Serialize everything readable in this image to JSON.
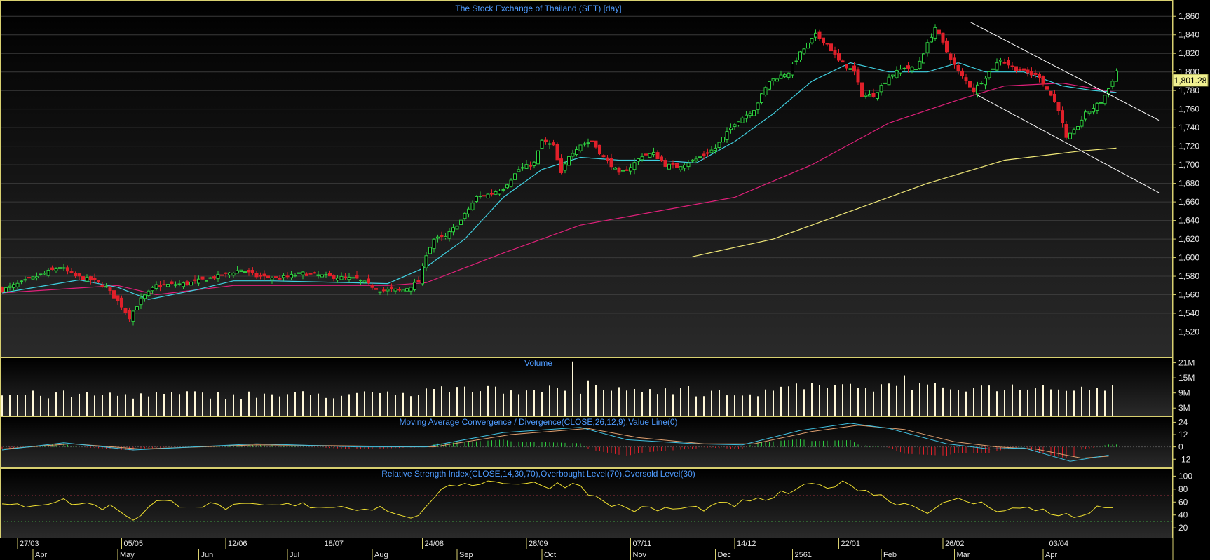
{
  "chart_data": [
    {
      "type": "candlestick",
      "title": "The Stock Exchange of Thailand (SET) [day]",
      "ylim": [
        1500,
        1870
      ],
      "y_ticks": [
        "1,520",
        "1,540",
        "1,560",
        "1,580",
        "1,600",
        "1,620",
        "1,640",
        "1,660",
        "1,680",
        "1,700",
        "1,720",
        "1,740",
        "1,760",
        "1,780",
        "1,800",
        "1,820",
        "1,840",
        "1,860"
      ],
      "last_value": "1,801.28",
      "grid": true,
      "x_tick_labels": [
        "27/03",
        "05/05",
        "12/06",
        "18/07",
        "24/08",
        "28/09",
        "07/11",
        "14/12",
        "22/01",
        "26/02",
        "03/04"
      ],
      "month_labels": [
        "Apr",
        "May",
        "Jun",
        "Jul",
        "Aug",
        "Sep",
        "Oct",
        "Nov",
        "Dec",
        "2561",
        "Feb",
        "Mar",
        "Apr"
      ],
      "colors": {
        "up": "#2ecc40",
        "down": "#e0202a",
        "ma_fast": "#40d0e0",
        "ma_mid": "#e0207a",
        "ma_slow": "#f0e878",
        "trendline": "#ffffff",
        "grid": "#3a3a3a",
        "border": "#d8d070",
        "title": "#4f9cff"
      },
      "close_path": [
        [
          0,
          1565
        ],
        [
          8,
          1578
        ],
        [
          15,
          1590
        ],
        [
          19,
          1580
        ],
        [
          24,
          1575
        ],
        [
          27,
          1568
        ],
        [
          31,
          1548
        ],
        [
          33,
          1536
        ],
        [
          36,
          1555
        ],
        [
          40,
          1570
        ],
        [
          48,
          1572
        ],
        [
          56,
          1580
        ],
        [
          62,
          1587
        ],
        [
          66,
          1580
        ],
        [
          72,
          1578
        ],
        [
          78,
          1583
        ],
        [
          84,
          1580
        ],
        [
          92,
          1577
        ],
        [
          98,
          1565
        ],
        [
          104,
          1565
        ],
        [
          108,
          1574
        ],
        [
          110,
          1604
        ],
        [
          112,
          1620
        ],
        [
          115,
          1622
        ],
        [
          119,
          1640
        ],
        [
          123,
          1665
        ],
        [
          126,
          1668
        ],
        [
          130,
          1675
        ],
        [
          134,
          1695
        ],
        [
          138,
          1702
        ],
        [
          140,
          1726
        ],
        [
          143,
          1720
        ],
        [
          145,
          1690
        ],
        [
          147,
          1710
        ],
        [
          150,
          1722
        ],
        [
          153,
          1725
        ],
        [
          156,
          1708
        ],
        [
          158,
          1700
        ],
        [
          160,
          1690
        ],
        [
          163,
          1698
        ],
        [
          166,
          1710
        ],
        [
          169,
          1712
        ],
        [
          172,
          1700
        ],
        [
          175,
          1698
        ],
        [
          180,
          1706
        ],
        [
          185,
          1718
        ],
        [
          190,
          1745
        ],
        [
          195,
          1760
        ],
        [
          199,
          1790
        ],
        [
          204,
          1800
        ],
        [
          207,
          1820
        ],
        [
          211,
          1840
        ],
        [
          214,
          1830
        ],
        [
          217,
          1812
        ],
        [
          221,
          1800
        ],
        [
          223,
          1775
        ],
        [
          226,
          1775
        ],
        [
          230,
          1795
        ],
        [
          234,
          1805
        ],
        [
          237,
          1803
        ],
        [
          240,
          1830
        ],
        [
          242,
          1848
        ],
        [
          245,
          1822
        ],
        [
          248,
          1800
        ],
        [
          252,
          1780
        ],
        [
          255,
          1795
        ],
        [
          259,
          1814
        ],
        [
          262,
          1805
        ],
        [
          265,
          1800
        ],
        [
          269,
          1795
        ],
        [
          272,
          1775
        ],
        [
          274,
          1760
        ],
        [
          276,
          1728
        ],
        [
          278,
          1736
        ],
        [
          281,
          1755
        ],
        [
          285,
          1768
        ],
        [
          287,
          1782
        ],
        [
          289,
          1801
        ]
      ],
      "ma_fast_path": [
        [
          0,
          1562
        ],
        [
          20,
          1576
        ],
        [
          30,
          1568
        ],
        [
          38,
          1555
        ],
        [
          50,
          1565
        ],
        [
          60,
          1575
        ],
        [
          70,
          1575
        ],
        [
          80,
          1574
        ],
        [
          100,
          1572
        ],
        [
          110,
          1590
        ],
        [
          120,
          1620
        ],
        [
          130,
          1665
        ],
        [
          140,
          1695
        ],
        [
          150,
          1708
        ],
        [
          160,
          1705
        ],
        [
          170,
          1705
        ],
        [
          180,
          1702
        ],
        [
          190,
          1725
        ],
        [
          200,
          1755
        ],
        [
          210,
          1790
        ],
        [
          220,
          1810
        ],
        [
          230,
          1800
        ],
        [
          240,
          1800
        ],
        [
          248,
          1810
        ],
        [
          255,
          1800
        ],
        [
          265,
          1800
        ],
        [
          275,
          1785
        ],
        [
          283,
          1780
        ],
        [
          289,
          1778
        ]
      ],
      "ma_mid_path": [
        [
          0,
          1562
        ],
        [
          30,
          1570
        ],
        [
          40,
          1560
        ],
        [
          60,
          1570
        ],
        [
          100,
          1570
        ],
        [
          110,
          1573
        ],
        [
          130,
          1605
        ],
        [
          150,
          1635
        ],
        [
          170,
          1650
        ],
        [
          190,
          1665
        ],
        [
          210,
          1700
        ],
        [
          230,
          1745
        ],
        [
          248,
          1770
        ],
        [
          260,
          1785
        ],
        [
          275,
          1788
        ],
        [
          289,
          1778
        ]
      ],
      "ma_slow_path": [
        [
          179,
          1601
        ],
        [
          200,
          1620
        ],
        [
          220,
          1650
        ],
        [
          240,
          1680
        ],
        [
          260,
          1705
        ],
        [
          280,
          1715
        ],
        [
          289,
          1718
        ]
      ],
      "trendlines": [
        [
          [
            251,
            1854
          ],
          [
            300,
            1748
          ]
        ],
        [
          [
            253,
            1775
          ],
          [
            300,
            1670
          ]
        ]
      ]
    },
    {
      "type": "bar",
      "title": "Volume",
      "y_ticks": [
        "3M",
        "9M",
        "15M",
        "21M"
      ],
      "ylim": [
        0,
        22
      ],
      "spikes": [
        [
          148,
          21.5
        ],
        [
          152,
          14
        ],
        [
          117,
          15.5
        ],
        [
          249,
          17
        ],
        [
          234,
          16
        ],
        [
          277,
          16
        ],
        [
          253,
          14
        ]
      ]
    },
    {
      "type": "line+bar",
      "title": "Moving Average Convergence / Divergence(CLOSE,26,12,9),Value Line(0)",
      "y_ticks": [
        "24",
        "12",
        "0",
        "-12"
      ],
      "ylim": [
        -20,
        27
      ],
      "macd_path": [
        [
          0,
          -3
        ],
        [
          16,
          4
        ],
        [
          34,
          -3
        ],
        [
          66,
          3
        ],
        [
          92,
          0
        ],
        [
          110,
          0
        ],
        [
          130,
          14
        ],
        [
          150,
          19
        ],
        [
          162,
          7
        ],
        [
          180,
          3
        ],
        [
          192,
          2
        ],
        [
          207,
          16
        ],
        [
          220,
          23
        ],
        [
          230,
          18
        ],
        [
          245,
          3
        ],
        [
          256,
          -2
        ],
        [
          265,
          -1
        ],
        [
          277,
          -14
        ],
        [
          287,
          -8
        ]
      ],
      "signal_path": [
        [
          0,
          -2
        ],
        [
          18,
          3
        ],
        [
          36,
          -2
        ],
        [
          66,
          2
        ],
        [
          92,
          1
        ],
        [
          112,
          0
        ],
        [
          132,
          12
        ],
        [
          152,
          18
        ],
        [
          165,
          9
        ],
        [
          182,
          3
        ],
        [
          195,
          3
        ],
        [
          210,
          15
        ],
        [
          222,
          21
        ],
        [
          234,
          17
        ],
        [
          247,
          5
        ],
        [
          258,
          0
        ],
        [
          268,
          -2
        ],
        [
          280,
          -11
        ],
        [
          287,
          -9
        ]
      ],
      "hist_colors": {
        "up": "#2ecc40",
        "down": "#e0202a"
      }
    },
    {
      "type": "line",
      "title": "Relative Strength Index(CLOSE,14,30,70),Overbought Level(70),Oversold Level(30)",
      "y_ticks": [
        "100",
        "80",
        "60",
        "40",
        "20"
      ],
      "ylim": [
        5,
        108
      ],
      "overbought": 70,
      "oversold": 30,
      "rsi_path": [
        [
          0,
          52
        ],
        [
          15,
          62
        ],
        [
          30,
          50
        ],
        [
          34,
          34
        ],
        [
          40,
          60
        ],
        [
          60,
          52
        ],
        [
          80,
          55
        ],
        [
          100,
          50
        ],
        [
          104,
          34
        ],
        [
          110,
          48
        ],
        [
          116,
          88
        ],
        [
          130,
          92
        ],
        [
          140,
          86
        ],
        [
          150,
          88
        ],
        [
          155,
          60
        ],
        [
          165,
          48
        ],
        [
          180,
          50
        ],
        [
          195,
          60
        ],
        [
          210,
          85
        ],
        [
          220,
          88
        ],
        [
          230,
          64
        ],
        [
          240,
          48
        ],
        [
          249,
          64
        ],
        [
          258,
          50
        ],
        [
          270,
          48
        ],
        [
          278,
          35
        ],
        [
          287,
          55
        ]
      ]
    }
  ]
}
